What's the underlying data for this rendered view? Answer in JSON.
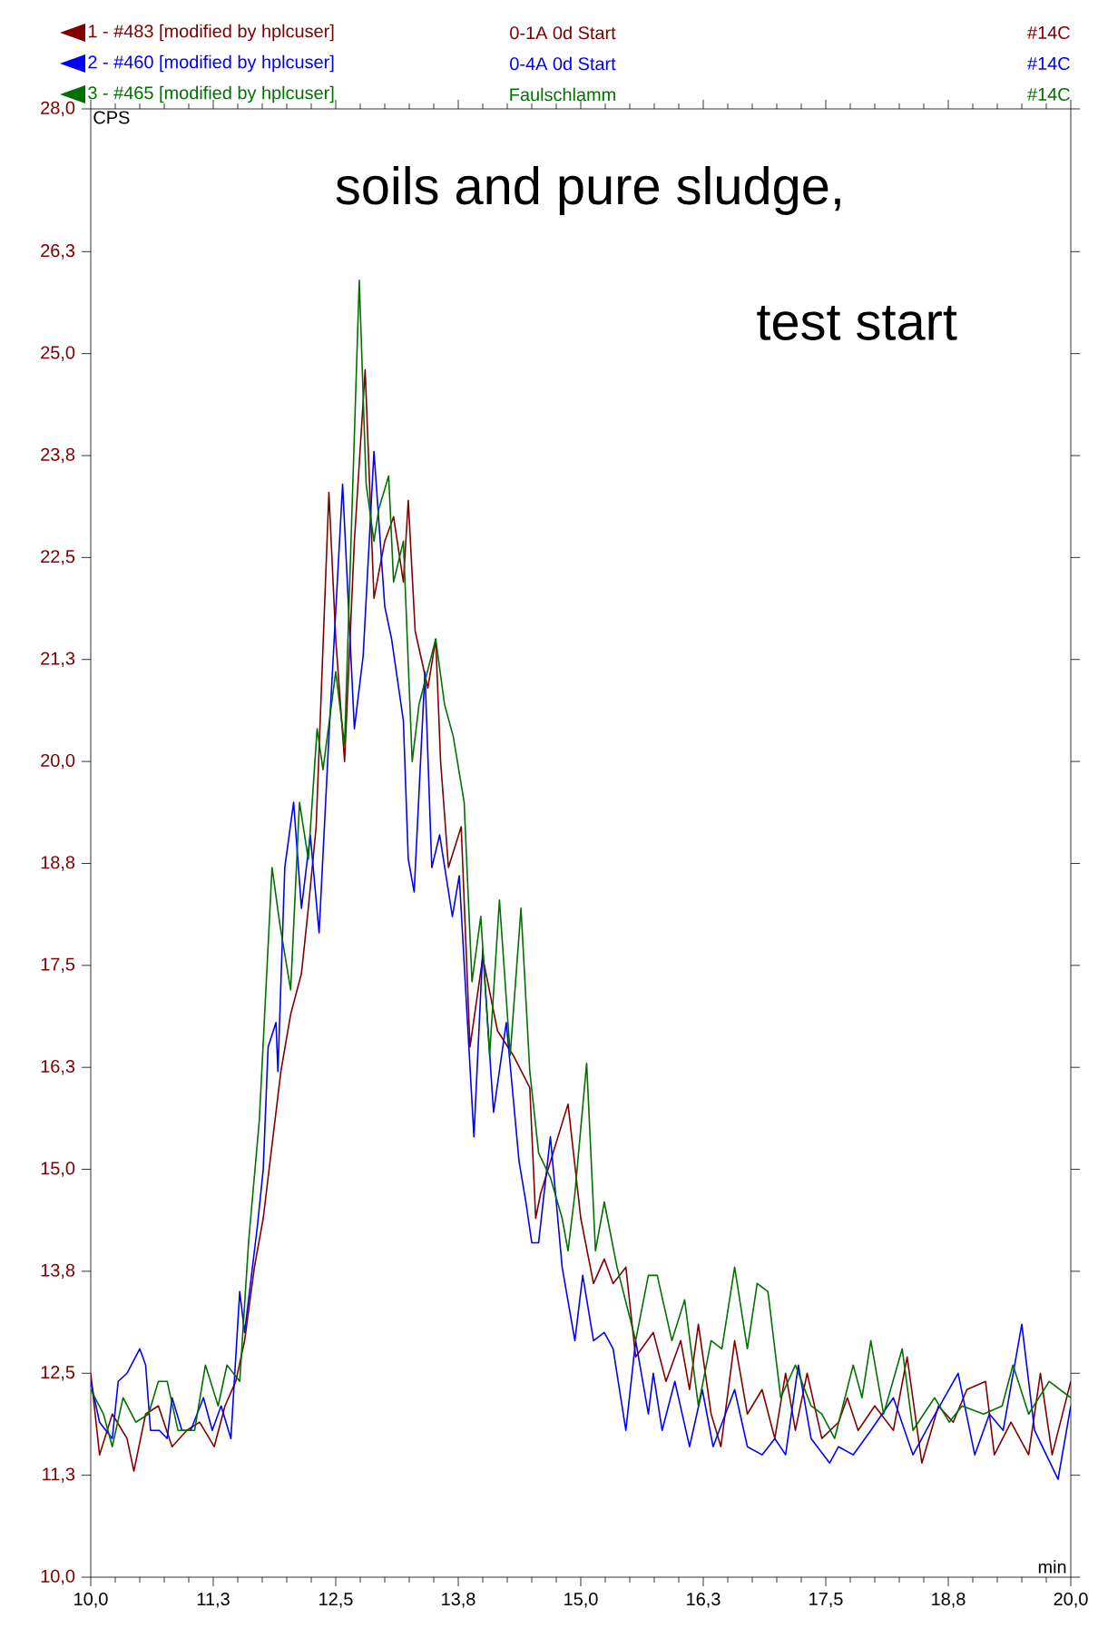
{
  "chart_data": {
    "type": "line",
    "title": "soils and pure sludge,",
    "subtitle": "test start",
    "xlabel": "min",
    "ylabel": "CPS",
    "annotations": [
      "0-1A 0d Start",
      "#14C",
      "0-4A 0d Start",
      "#14C",
      "Faulschlamm",
      "#14C"
    ],
    "legend": "top",
    "xlim": [
      10,
      20
    ],
    "ylim": [
      10,
      28
    ],
    "xticks": [
      {
        "value": 10,
        "label": "10,0"
      },
      {
        "value": 11.25,
        "label": "11,3"
      },
      {
        "value": 12.5,
        "label": "12,5"
      },
      {
        "value": 13.75,
        "label": "13,8"
      },
      {
        "value": 15,
        "label": "15,0"
      },
      {
        "value": 16.25,
        "label": "16,3"
      },
      {
        "value": 17.5,
        "label": "17,5"
      },
      {
        "value": 18.75,
        "label": "18,8"
      },
      {
        "value": 20,
        "label": "20,0"
      }
    ],
    "yticks": [
      {
        "value": 10,
        "label": "10,0"
      },
      {
        "value": 11.25,
        "label": "11,3"
      },
      {
        "value": 12.5,
        "label": "12,5"
      },
      {
        "value": 13.75,
        "label": "13,8"
      },
      {
        "value": 15,
        "label": "15,0"
      },
      {
        "value": 16.25,
        "label": "16,3"
      },
      {
        "value": 17.5,
        "label": "17,5"
      },
      {
        "value": 18.75,
        "label": "18,8"
      },
      {
        "value": 20,
        "label": "20,0"
      },
      {
        "value": 21.25,
        "label": "21,3"
      },
      {
        "value": 22.5,
        "label": "22,5"
      },
      {
        "value": 23.75,
        "label": "23,8"
      },
      {
        "value": 25,
        "label": "25,0"
      },
      {
        "value": 26.25,
        "label": "26,3"
      },
      {
        "value": 28,
        "label": "28,0"
      }
    ],
    "series": [
      {
        "name": "1 - #483 [modified by hplcuser]",
        "color": "#800000",
        "x": [
          10.0,
          10.09,
          10.22,
          10.37,
          10.44,
          10.56,
          10.69,
          10.83,
          10.98,
          11.11,
          11.26,
          11.37,
          11.48,
          11.57,
          11.67,
          11.76,
          11.85,
          11.94,
          12.04,
          12.15,
          12.22,
          12.3,
          12.43,
          12.5,
          12.59,
          12.69,
          12.8,
          12.89,
          13.0,
          13.09,
          13.19,
          13.24,
          13.31,
          13.44,
          13.52,
          13.57,
          13.65,
          13.78,
          13.87,
          14.0,
          14.15,
          14.31,
          14.48,
          14.54,
          14.59,
          14.87,
          15.0,
          15.13,
          15.24,
          15.33,
          15.46,
          15.56,
          15.74,
          15.87,
          16.02,
          16.11,
          16.2,
          16.33,
          16.43,
          16.57,
          16.7,
          16.85,
          16.98,
          17.09,
          17.19,
          17.31,
          17.46,
          17.63,
          17.72,
          17.83,
          18.0,
          18.19,
          18.33,
          18.48,
          18.65,
          18.8,
          18.94,
          19.13,
          19.22,
          19.39,
          19.57,
          19.69,
          19.81,
          20.0
        ],
        "values": [
          12.5,
          11.5,
          12.0,
          11.7,
          11.3,
          12.0,
          12.1,
          11.6,
          11.8,
          11.9,
          11.6,
          12.1,
          12.4,
          12.9,
          13.8,
          14.4,
          15.3,
          16.2,
          16.9,
          17.4,
          18.2,
          19.2,
          23.3,
          21.5,
          20.0,
          22.7,
          24.8,
          22.0,
          22.7,
          23.0,
          22.2,
          23.2,
          21.6,
          20.9,
          21.5,
          20.0,
          18.7,
          19.2,
          16.5,
          17.6,
          16.7,
          16.4,
          16.0,
          14.4,
          14.7,
          15.8,
          14.4,
          13.6,
          13.9,
          13.6,
          13.8,
          12.7,
          13.0,
          12.4,
          12.9,
          12.3,
          13.1,
          12.0,
          11.6,
          12.9,
          12.0,
          12.3,
          11.7,
          12.5,
          11.8,
          12.5,
          11.7,
          11.9,
          12.2,
          11.8,
          12.1,
          11.8,
          12.7,
          11.4,
          12.1,
          11.9,
          12.3,
          12.4,
          11.5,
          11.9,
          11.5,
          12.5,
          11.5,
          12.4
        ]
      },
      {
        "name": "2 - #460 [modified by hplcuser]",
        "color": "#0000ff",
        "x": [
          10.0,
          10.09,
          10.22,
          10.28,
          10.37,
          10.5,
          10.56,
          10.61,
          10.7,
          10.78,
          10.83,
          10.93,
          11.02,
          11.15,
          11.24,
          11.33,
          11.43,
          11.52,
          11.57,
          11.7,
          11.76,
          11.81,
          11.89,
          11.91,
          11.98,
          12.07,
          12.15,
          12.24,
          12.33,
          12.43,
          12.57,
          12.69,
          12.78,
          12.89,
          13.0,
          13.07,
          13.19,
          13.24,
          13.3,
          13.41,
          13.48,
          13.56,
          13.69,
          13.76,
          13.91,
          14.0,
          14.11,
          14.24,
          14.37,
          14.44,
          14.5,
          14.57,
          14.69,
          14.81,
          14.94,
          15.02,
          15.13,
          15.24,
          15.33,
          15.46,
          15.56,
          15.69,
          15.74,
          15.83,
          15.96,
          16.11,
          16.24,
          16.35,
          16.57,
          16.7,
          16.85,
          16.98,
          17.09,
          17.22,
          17.35,
          17.54,
          17.63,
          17.78,
          17.96,
          18.19,
          18.39,
          18.57,
          18.85,
          19.02,
          19.17,
          19.31,
          19.5,
          19.63,
          19.87,
          20.0
        ],
        "values": [
          12.4,
          11.9,
          11.7,
          12.4,
          12.5,
          12.8,
          12.6,
          11.8,
          11.8,
          11.7,
          12.2,
          11.8,
          11.8,
          12.2,
          11.8,
          12.1,
          11.7,
          13.5,
          13.0,
          14.3,
          15.0,
          16.5,
          16.8,
          16.2,
          18.7,
          19.5,
          18.2,
          19.1,
          17.9,
          20.3,
          23.4,
          20.4,
          21.3,
          23.8,
          21.9,
          21.5,
          20.5,
          18.8,
          18.4,
          21.1,
          18.7,
          19.1,
          18.1,
          18.6,
          15.4,
          17.7,
          15.7,
          16.8,
          15.1,
          14.6,
          14.1,
          14.1,
          15.4,
          13.8,
          12.9,
          13.7,
          12.9,
          13.0,
          12.8,
          11.8,
          12.9,
          12.0,
          12.5,
          11.8,
          12.4,
          11.6,
          12.3,
          11.6,
          12.3,
          11.6,
          11.5,
          11.7,
          11.5,
          12.6,
          11.7,
          11.4,
          11.6,
          11.5,
          11.8,
          12.2,
          11.5,
          11.9,
          12.5,
          11.5,
          12.0,
          11.8,
          13.1,
          11.8,
          11.2,
          12.1
        ]
      },
      {
        "name": "3 - #465 [modified by hplcuser]",
        "color": "#007000",
        "x": [
          10.0,
          10.13,
          10.22,
          10.33,
          10.46,
          10.59,
          10.69,
          10.78,
          10.89,
          11.06,
          11.17,
          11.3,
          11.39,
          11.52,
          11.61,
          11.72,
          11.85,
          11.93,
          12.04,
          12.13,
          12.22,
          12.31,
          12.37,
          12.5,
          12.59,
          12.74,
          12.81,
          12.89,
          12.94,
          13.04,
          13.09,
          13.19,
          13.28,
          13.35,
          13.52,
          13.61,
          13.7,
          13.81,
          13.89,
          13.98,
          14.07,
          14.17,
          14.28,
          14.39,
          14.48,
          14.57,
          14.69,
          14.81,
          14.87,
          14.94,
          15.06,
          15.15,
          15.24,
          15.37,
          15.56,
          15.69,
          15.78,
          15.93,
          16.06,
          16.2,
          16.33,
          16.44,
          16.57,
          16.7,
          16.8,
          16.91,
          17.04,
          17.19,
          17.35,
          17.46,
          17.59,
          17.78,
          17.87,
          17.96,
          18.09,
          18.28,
          18.39,
          18.61,
          18.76,
          18.89,
          19.11,
          19.3,
          19.41,
          19.57,
          19.78,
          20.0
        ],
        "values": [
          12.3,
          12.0,
          11.6,
          12.2,
          11.9,
          12.0,
          12.4,
          12.4,
          11.8,
          11.8,
          12.6,
          12.1,
          12.6,
          12.4,
          14.1,
          15.6,
          18.7,
          18.0,
          17.2,
          19.5,
          18.8,
          20.4,
          19.9,
          21.1,
          20.2,
          25.9,
          23.4,
          22.7,
          23.1,
          23.5,
          22.2,
          22.7,
          20.0,
          20.7,
          21.5,
          20.7,
          20.3,
          19.5,
          17.3,
          18.1,
          16.4,
          18.3,
          16.4,
          18.2,
          16.2,
          15.2,
          14.9,
          14.4,
          14.0,
          14.7,
          16.3,
          14.0,
          14.6,
          13.8,
          12.9,
          13.7,
          13.7,
          12.9,
          13.4,
          12.1,
          12.9,
          12.8,
          13.8,
          12.8,
          13.6,
          13.5,
          12.2,
          12.6,
          12.1,
          12.0,
          11.7,
          12.6,
          12.2,
          12.9,
          12.0,
          12.8,
          11.8,
          12.2,
          11.9,
          12.1,
          12.0,
          12.1,
          12.6,
          12.0,
          12.4,
          12.2
        ]
      }
    ]
  }
}
